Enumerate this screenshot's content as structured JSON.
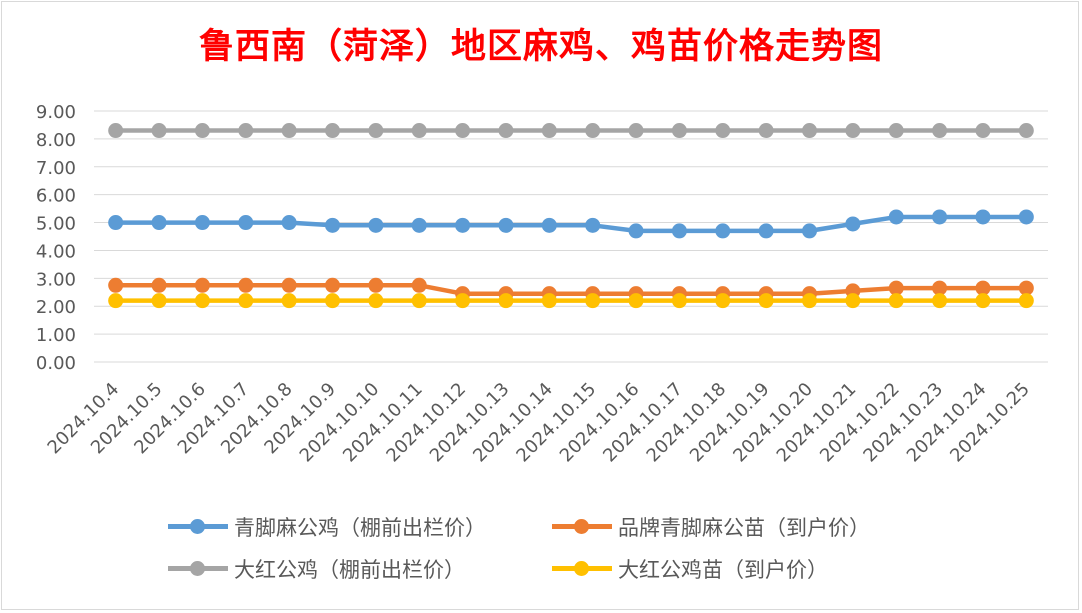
{
  "chart_data": {
    "type": "line",
    "title": "鲁西南（菏泽）地区麻鸡、鸡苗价格走势图",
    "xlabel": "",
    "ylabel": "",
    "ylim": [
      0,
      9
    ],
    "y_ticks": [
      "0.00",
      "1.00",
      "2.00",
      "3.00",
      "4.00",
      "5.00",
      "6.00",
      "7.00",
      "8.00",
      "9.00"
    ],
    "grid": true,
    "legend_position": "bottom",
    "categories": [
      "2024.10.4",
      "2024.10.5",
      "2024.10.6",
      "2024.10.7",
      "2024.10.8",
      "2024.10.9",
      "2024.10.10",
      "2024.10.11",
      "2024.10.12",
      "2024.10.13",
      "2024.10.14",
      "2024.10.15",
      "2024.10.16",
      "2024.10.17",
      "2024.10.18",
      "2024.10.19",
      "2024.10.20",
      "2024.10.21",
      "2024.10.22",
      "2024.10.23",
      "2024.10.24",
      "2024.10.25"
    ],
    "series": [
      {
        "name": "青脚麻公鸡（棚前出栏价）",
        "color": "#5b9bd5",
        "values": [
          5.0,
          5.0,
          5.0,
          5.0,
          5.0,
          4.9,
          4.9,
          4.9,
          4.9,
          4.9,
          4.9,
          4.9,
          4.7,
          4.7,
          4.7,
          4.7,
          4.7,
          4.95,
          5.2,
          5.2,
          5.2,
          5.2
        ]
      },
      {
        "name": "品牌青脚麻公苗（到户价）",
        "color": "#ed7d31",
        "values": [
          2.75,
          2.75,
          2.75,
          2.75,
          2.75,
          2.75,
          2.75,
          2.75,
          2.45,
          2.45,
          2.45,
          2.45,
          2.45,
          2.45,
          2.45,
          2.45,
          2.45,
          2.55,
          2.65,
          2.65,
          2.65,
          2.65
        ]
      },
      {
        "name": "大红公鸡（棚前出栏价）",
        "color": "#a5a5a5",
        "values": [
          8.3,
          8.3,
          8.3,
          8.3,
          8.3,
          8.3,
          8.3,
          8.3,
          8.3,
          8.3,
          8.3,
          8.3,
          8.3,
          8.3,
          8.3,
          8.3,
          8.3,
          8.3,
          8.3,
          8.3,
          8.3,
          8.3
        ]
      },
      {
        "name": "大红公鸡苗（到户价）",
        "color": "#ffc000",
        "values": [
          2.2,
          2.2,
          2.2,
          2.2,
          2.2,
          2.2,
          2.2,
          2.2,
          2.2,
          2.2,
          2.2,
          2.2,
          2.2,
          2.2,
          2.2,
          2.2,
          2.2,
          2.2,
          2.2,
          2.2,
          2.2,
          2.2
        ]
      }
    ]
  }
}
